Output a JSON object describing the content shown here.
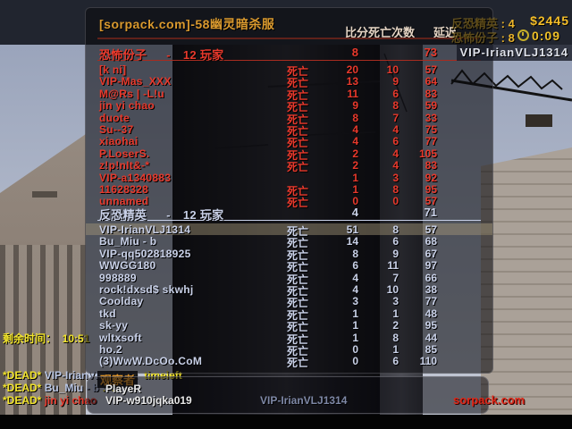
{
  "hud": {
    "server_title": "[sorpack.com]-58幽灵暗杀服",
    "col_score_deaths_header": "比分死亡次数",
    "col_latency_header": "延迟",
    "ct_label": "反恐精英",
    "ct_score_suffix": " : 4",
    "t_label": "恐怖份子",
    "t_score_suffix": " : 8",
    "money": "$2445",
    "round_timer": "0:09",
    "player_nametag": "VIP-IrianVLJ1314"
  },
  "colors": {
    "terrorist": "#e8392c",
    "terrorist_underline": "#a82c20",
    "ct": "#c9d1e8",
    "ct_underline": "#c8d0e8",
    "accent_orange": "#d9992e",
    "chat_yellow": "#f2e42c",
    "watermark_red": "#e02818"
  },
  "scoreboard": {
    "teams": [
      {
        "name": "恐怖份子",
        "dash": "-",
        "count_label": "12 玩家",
        "score": "8",
        "avg_ping": "73",
        "side": "t",
        "players": [
          {
            "name": "[k ni]",
            "status": "死亡",
            "kills": "20",
            "deaths": "10",
            "ping": "57"
          },
          {
            "name": "VIP-Mas_XXX",
            "status": "死亡",
            "kills": "13",
            "deaths": "9",
            "ping": "64"
          },
          {
            "name": "M@Rs | -L!u",
            "status": "死亡",
            "kills": "11",
            "deaths": "6",
            "ping": "83"
          },
          {
            "name": "jin yi chao",
            "status": "死亡",
            "kills": "9",
            "deaths": "8",
            "ping": "59"
          },
          {
            "name": "duote",
            "status": "死亡",
            "kills": "8",
            "deaths": "7",
            "ping": "33"
          },
          {
            "name": "Su--37",
            "status": "死亡",
            "kills": "4",
            "deaths": "4",
            "ping": "75"
          },
          {
            "name": "xiaohai",
            "status": "死亡",
            "kills": "4",
            "deaths": "6",
            "ping": "77"
          },
          {
            "name": "P.LoserS.",
            "status": "死亡",
            "kills": "2",
            "deaths": "4",
            "ping": "105"
          },
          {
            "name": "z!p!nIt&-*",
            "status": "死亡",
            "kills": "2",
            "deaths": "4",
            "ping": "83"
          },
          {
            "name": "VIP-a1340883",
            "status": "",
            "kills": "1",
            "deaths": "3",
            "ping": "92"
          },
          {
            "name": "11628328",
            "status": "死亡",
            "kills": "1",
            "deaths": "8",
            "ping": "95"
          },
          {
            "name": "unnamed",
            "status": "死亡",
            "kills": "0",
            "deaths": "0",
            "ping": "57"
          }
        ]
      },
      {
        "name": "反恐精英",
        "dash": "-",
        "count_label": "12 玩家",
        "score": "4",
        "avg_ping": "71",
        "side": "ct",
        "players": [
          {
            "name": "VIP-IrianVLJ1314",
            "status": "死亡",
            "kills": "51",
            "deaths": "8",
            "ping": "57",
            "highlight": true
          },
          {
            "name": "Bu_Miu - b",
            "status": "死亡",
            "kills": "14",
            "deaths": "6",
            "ping": "68"
          },
          {
            "name": "VIP-qq502818925",
            "status": "死亡",
            "kills": "8",
            "deaths": "9",
            "ping": "67"
          },
          {
            "name": "WWGG180",
            "status": "死亡",
            "kills": "6",
            "deaths": "11",
            "ping": "97"
          },
          {
            "name": "998889",
            "status": "死亡",
            "kills": "4",
            "deaths": "7",
            "ping": "66"
          },
          {
            "name": "rock!dxsd$ skwhj",
            "status": "死亡",
            "kills": "4",
            "deaths": "10",
            "ping": "38"
          },
          {
            "name": "Coolday",
            "status": "死亡",
            "kills": "3",
            "deaths": "3",
            "ping": "77"
          },
          {
            "name": "tkd",
            "status": "死亡",
            "kills": "1",
            "deaths": "1",
            "ping": "48"
          },
          {
            "name": "sk-yy",
            "status": "死亡",
            "kills": "1",
            "deaths": "2",
            "ping": "95"
          },
          {
            "name": "wltxsoft",
            "status": "死亡",
            "kills": "1",
            "deaths": "8",
            "ping": "44"
          },
          {
            "name": "ho.2",
            "status": "死亡",
            "kills": "0",
            "deaths": "1",
            "ping": "85"
          },
          {
            "name": "(3)WwW.DcOo.CoM",
            "status": "死亡",
            "kills": "0",
            "deaths": "6",
            "ping": "110"
          }
        ]
      }
    ]
  },
  "spectators": {
    "header": "观察者",
    "names": [
      "PlayeR",
      "VIP-w910jqka019"
    ],
    "center_name": "VIP-IrianVLJ1314"
  },
  "watermark": "sorpack.com",
  "chat": {
    "timeleft_label": "剩余时间：  ",
    "timeleft_value": "10:51",
    "lines": [
      {
        "prefix": "*DEAD* ",
        "name": "VIP-IrianVLJ1314",
        "msg": " :  timeleft",
        "team": "ct"
      },
      {
        "prefix": "*DEAD* ",
        "name": "Bu_Miu - b",
        "msg": " :  ..",
        "team": "ct"
      },
      {
        "prefix": "*DEAD* ",
        "name": "jin yi chao",
        "msg": "",
        "team": "t"
      }
    ]
  }
}
